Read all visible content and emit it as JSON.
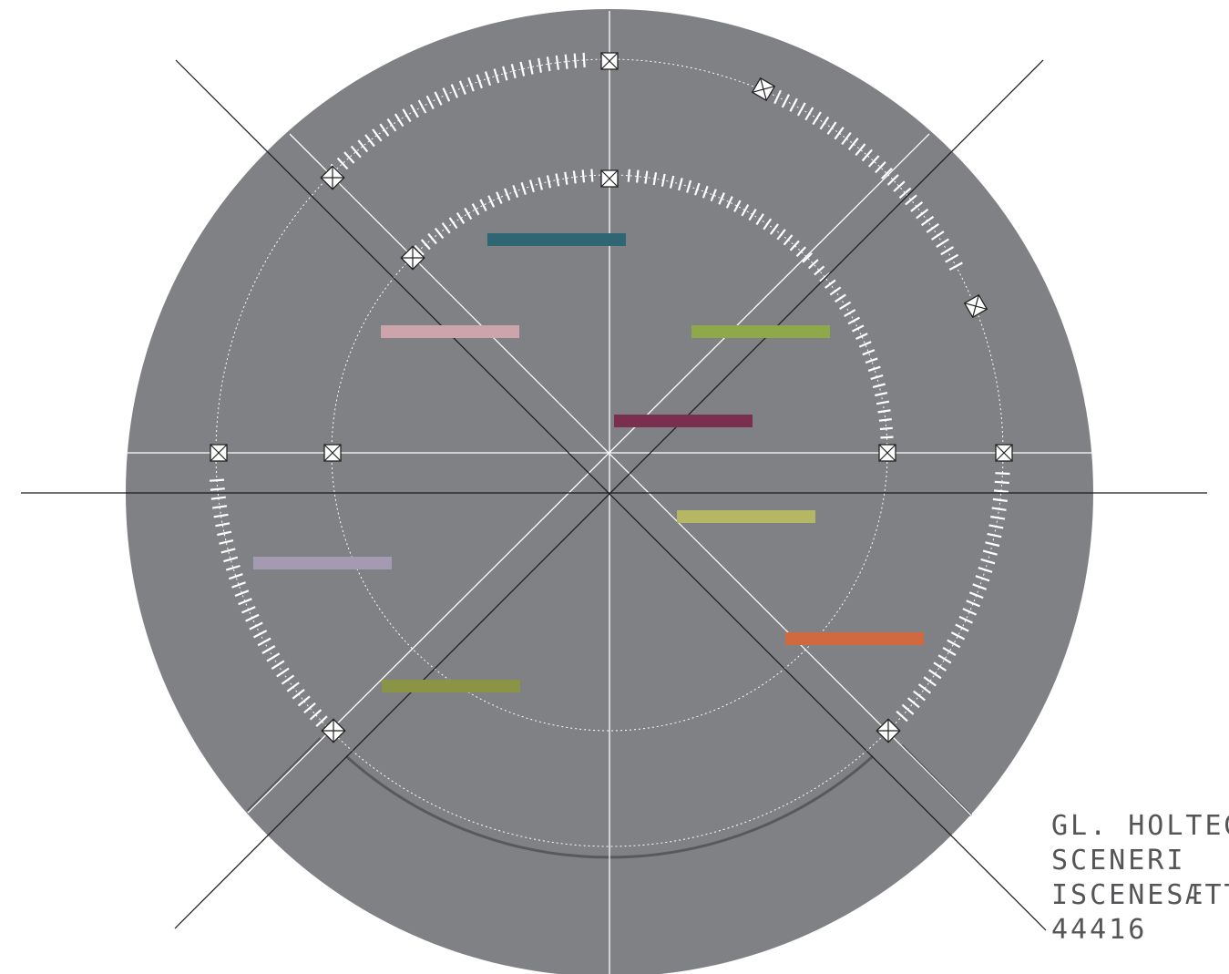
{
  "labels": {
    "line1": "GL. HOLTEG",
    "line2": "SCENERI",
    "line3": "ISCENESÆTT",
    "line4": "44416"
  },
  "colors": {
    "disc": "#808184",
    "white_lines": "#ffffff",
    "black_lines": "#1a1a1a",
    "arc_shadow": "#59595b",
    "text": "#555558"
  },
  "marker_icons": {
    "square_marker": "crossed-square-icon",
    "diamond_marker": "crossed-diamond-icon"
  },
  "bars": [
    {
      "name": "teal",
      "color": "#2f6673"
    },
    {
      "name": "pink",
      "color": "#cda3ac"
    },
    {
      "name": "green",
      "color": "#8fa84a"
    },
    {
      "name": "maroon",
      "color": "#7a2f4e"
    },
    {
      "name": "yellow-green",
      "color": "#b5b764"
    },
    {
      "name": "lavender",
      "color": "#a49ab1"
    },
    {
      "name": "orange",
      "color": "#d0693f"
    },
    {
      "name": "olive",
      "color": "#8a9444"
    }
  ]
}
